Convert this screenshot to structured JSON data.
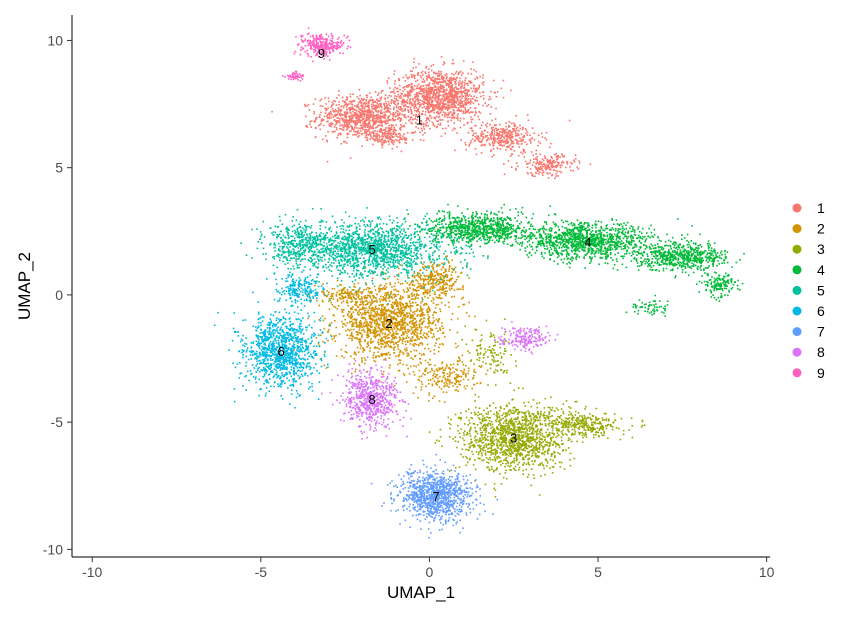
{
  "chart_data": {
    "type": "scatter",
    "xlabel": "UMAP_1",
    "ylabel": "UMAP_2",
    "xlim": [
      -10.6,
      10.1
    ],
    "ylim": [
      -10.3,
      11.0
    ],
    "x_ticks": [
      -10,
      -5,
      0,
      5,
      10
    ],
    "y_ticks": [
      -10,
      -5,
      0,
      5,
      10
    ],
    "grid": false,
    "legend_position": "right",
    "series": [
      {
        "name": "1",
        "color": "#F8766D",
        "label_pos": [
          -0.3,
          6.9
        ],
        "blobs": [
          [
            -2.0,
            7.0,
            1.1,
            0.7,
            900
          ],
          [
            0.3,
            7.8,
            1.1,
            0.9,
            1200
          ],
          [
            2.2,
            6.2,
            0.9,
            0.5,
            350
          ],
          [
            3.5,
            5.1,
            0.7,
            0.35,
            200
          ],
          [
            -1.2,
            6.2,
            0.7,
            0.3,
            150
          ]
        ]
      },
      {
        "name": "2",
        "color": "#D39200",
        "label_pos": [
          -1.2,
          -1.1
        ],
        "blobs": [
          [
            -1.2,
            -1.1,
            1.3,
            1.2,
            1400
          ],
          [
            0.2,
            0.6,
            0.7,
            0.6,
            300
          ],
          [
            0.5,
            -3.2,
            0.8,
            0.6,
            200
          ],
          [
            -2.5,
            0.0,
            0.6,
            0.3,
            120
          ]
        ]
      },
      {
        "name": "3",
        "color": "#93AA00",
        "label_pos": [
          2.5,
          -5.6
        ],
        "blobs": [
          [
            2.5,
            -5.6,
            1.3,
            1.1,
            1300
          ],
          [
            4.6,
            -5.1,
            0.9,
            0.4,
            300
          ],
          [
            1.8,
            -2.3,
            0.6,
            0.8,
            120
          ]
        ]
      },
      {
        "name": "4",
        "color": "#00BA38",
        "label_pos": [
          4.7,
          2.1
        ],
        "blobs": [
          [
            1.5,
            2.6,
            1.3,
            0.5,
            800
          ],
          [
            4.7,
            2.1,
            1.6,
            0.6,
            1100
          ],
          [
            7.5,
            1.5,
            1.1,
            0.45,
            600
          ],
          [
            8.6,
            0.4,
            0.4,
            0.35,
            150
          ],
          [
            6.5,
            -0.5,
            0.5,
            0.3,
            60
          ]
        ]
      },
      {
        "name": "5",
        "color": "#00C19F",
        "label_pos": [
          -1.7,
          1.8
        ],
        "blobs": [
          [
            -1.7,
            1.8,
            1.9,
            0.9,
            1500
          ],
          [
            -3.9,
            2.0,
            0.8,
            0.7,
            300
          ]
        ]
      },
      {
        "name": "6",
        "color": "#00B9E3",
        "label_pos": [
          -4.4,
          -2.2
        ],
        "blobs": [
          [
            -4.4,
            -2.2,
            0.9,
            1.2,
            1100
          ],
          [
            -3.9,
            0.2,
            0.6,
            0.5,
            200
          ]
        ]
      },
      {
        "name": "7",
        "color": "#619CFF",
        "label_pos": [
          0.2,
          -7.9
        ],
        "blobs": [
          [
            0.2,
            -7.9,
            0.9,
            0.8,
            1000
          ]
        ]
      },
      {
        "name": "8",
        "color": "#DB72FB",
        "label_pos": [
          -1.7,
          -4.1
        ],
        "blobs": [
          [
            -1.7,
            -4.1,
            0.7,
            0.9,
            600
          ],
          [
            2.8,
            -1.7,
            0.6,
            0.35,
            180
          ]
        ]
      },
      {
        "name": "9",
        "color": "#FF61C3",
        "label_pos": [
          -3.2,
          9.5
        ],
        "blobs": [
          [
            -3.2,
            9.8,
            0.5,
            0.35,
            300
          ],
          [
            -4.0,
            8.6,
            0.25,
            0.15,
            50
          ]
        ]
      }
    ]
  }
}
